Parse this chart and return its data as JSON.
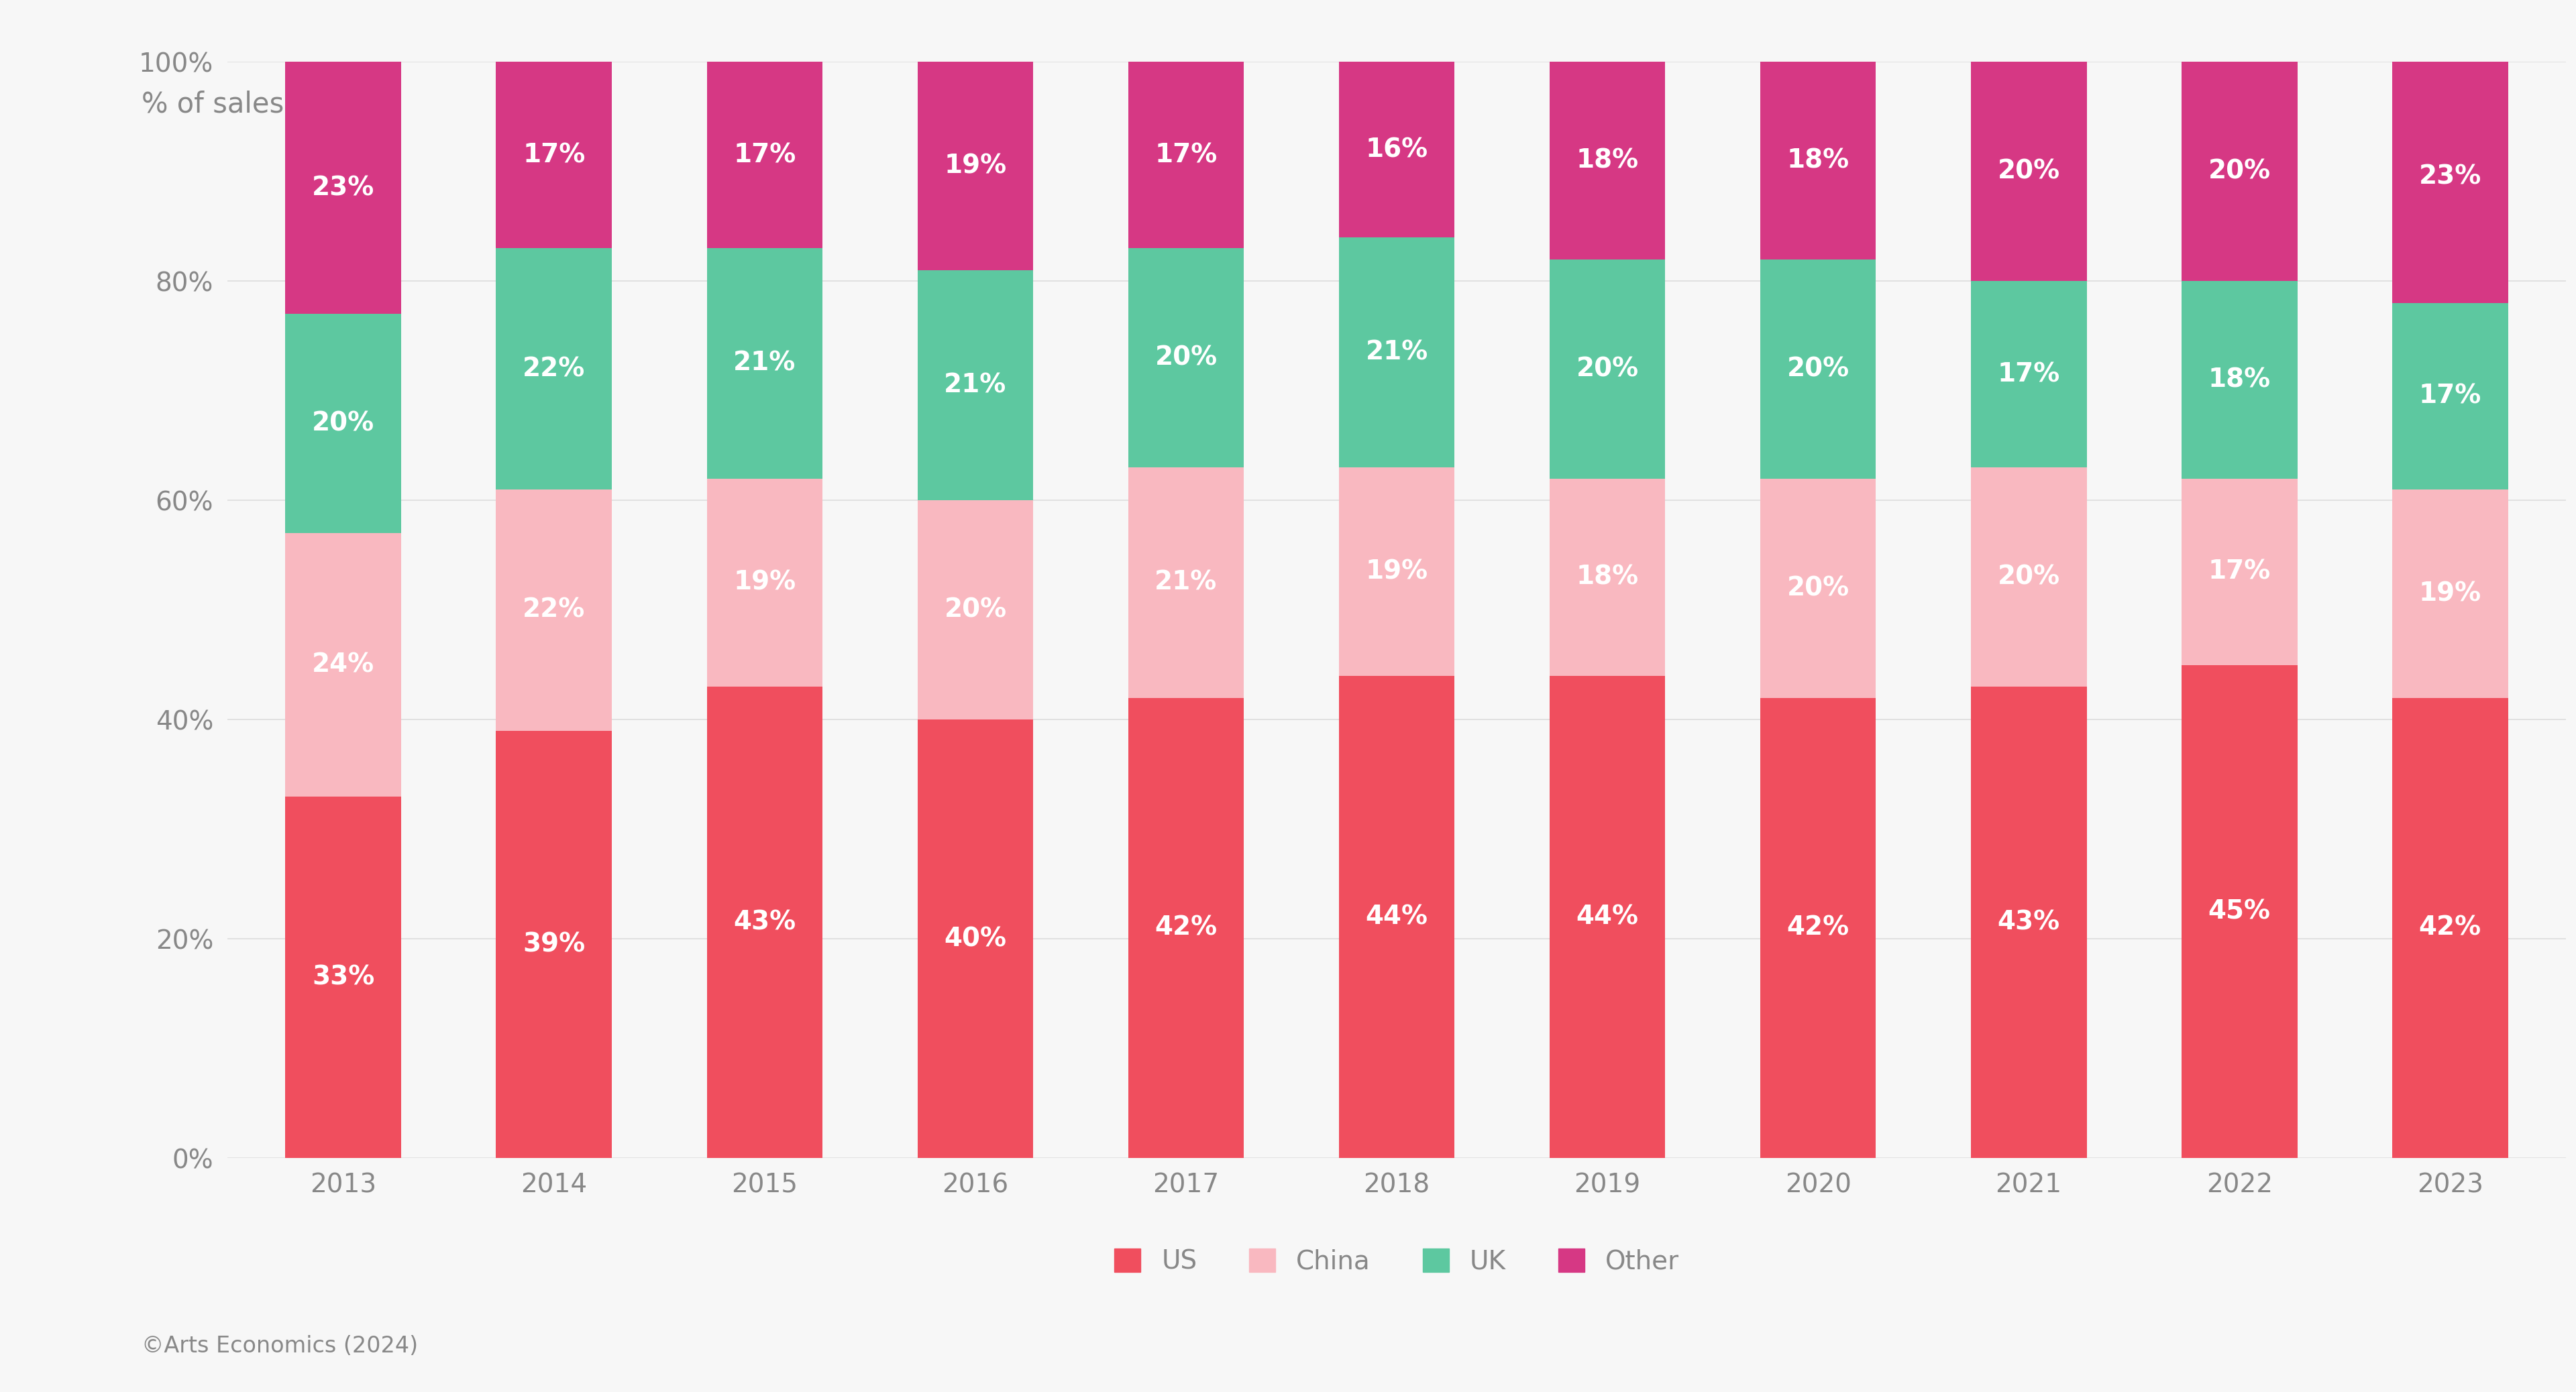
{
  "years": [
    2013,
    2014,
    2015,
    2016,
    2017,
    2018,
    2019,
    2020,
    2021,
    2022,
    2023
  ],
  "us": [
    33,
    39,
    43,
    40,
    42,
    44,
    44,
    42,
    43,
    45,
    42
  ],
  "china": [
    24,
    22,
    19,
    20,
    21,
    19,
    18,
    20,
    20,
    17,
    19
  ],
  "uk": [
    20,
    22,
    21,
    21,
    20,
    21,
    20,
    20,
    17,
    18,
    17
  ],
  "other": [
    23,
    17,
    17,
    19,
    17,
    16,
    18,
    18,
    20,
    20,
    23
  ],
  "colors": {
    "us": "#F04E5E",
    "china": "#F9B8C0",
    "uk": "#5DC8A0",
    "other": "#D63884"
  },
  "ylabel": "% of sales",
  "yticks": [
    0,
    20,
    40,
    60,
    80,
    100
  ],
  "ytick_labels": [
    "0%",
    "20%",
    "40%",
    "60%",
    "80%",
    "100%"
  ],
  "background_color": "#F7F7F7",
  "text_color": "#888888",
  "label_color": "#FFFFFF",
  "legend_labels": [
    "US",
    "China",
    "UK",
    "Other"
  ],
  "footer": "©Arts Economics (2024)",
  "bar_width": 0.55,
  "ylabel_fontsize": 30,
  "tick_fontsize": 28,
  "label_fontsize": 28,
  "legend_fontsize": 28,
  "footer_fontsize": 24
}
